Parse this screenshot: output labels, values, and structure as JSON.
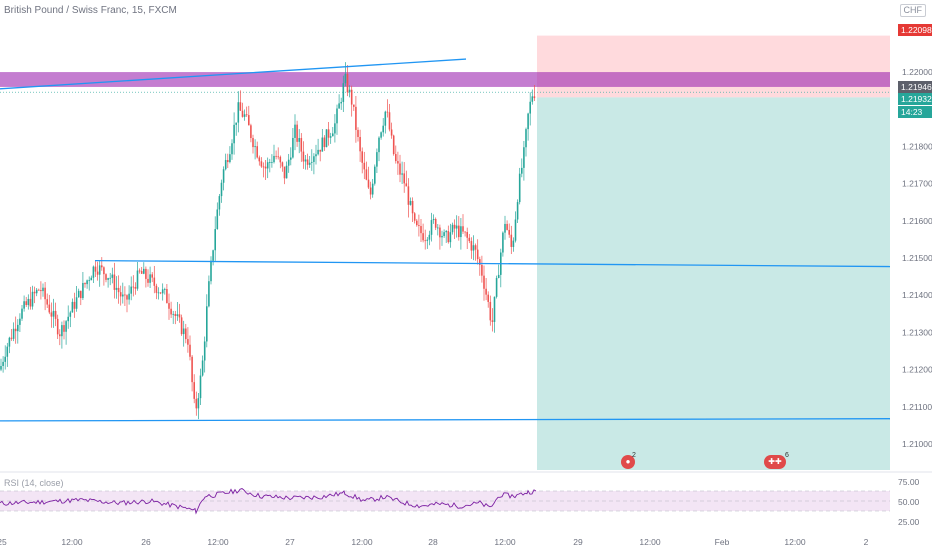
{
  "header": {
    "title": "British Pound / Swiss Franc, 15, FXCM",
    "currency": "CHF"
  },
  "rsi_panel": {
    "label": "RSI (14, close)",
    "ticks": [
      "75.00",
      "50.00",
      "25.00"
    ]
  },
  "price_tags": {
    "target": {
      "label": "1.22098",
      "color": "#e53935"
    },
    "last": {
      "label": "1.21946",
      "color": "#5d606b"
    },
    "entry": {
      "label": "1.21932",
      "color": "#26a69a"
    },
    "countdown": {
      "label": "14:23",
      "color": "#26a69a"
    }
  },
  "events": [
    {
      "icon": "calendar-event-icon",
      "count": "2"
    },
    {
      "icon": "dividend-event-icon",
      "count": "6"
    }
  ],
  "colors": {
    "up": "#26a69a",
    "down": "#ef5350",
    "trendline": "#2196f3",
    "resistance_band": "#9c27b0",
    "profit_zone": "#b2dfdb",
    "loss_zone": "#ffcdd2",
    "rsi_line": "#7b1fa2",
    "rsi_band": "#f3e5f5"
  },
  "chart_data": {
    "type": "candlestick",
    "title": "British Pound / Swiss Franc, 15, FXCM",
    "y_axis": {
      "range": [
        1.2093,
        1.2214
      ],
      "ticks": [
        "1.22000",
        "1.21900",
        "1.21800",
        "1.21700",
        "1.21600",
        "1.21500",
        "1.21400",
        "1.21300",
        "1.21200",
        "1.21100",
        "1.21000"
      ]
    },
    "x_axis": {
      "ticks": [
        "25",
        "12:00",
        "26",
        "12:00",
        "27",
        "12:00",
        "28",
        "12:00",
        "29",
        "12:00",
        "Feb",
        "12:00",
        "2"
      ]
    },
    "price_path": [
      [
        0,
        1.212
      ],
      [
        5,
        1.2125
      ],
      [
        20,
        1.2135
      ],
      [
        40,
        1.2142
      ],
      [
        60,
        1.213
      ],
      [
        75,
        1.2138
      ],
      [
        95,
        1.2148
      ],
      [
        110,
        1.2145
      ],
      [
        125,
        1.2138
      ],
      [
        140,
        1.2146
      ],
      [
        150,
        1.2144
      ],
      [
        165,
        1.214
      ],
      [
        178,
        1.2133
      ],
      [
        188,
        1.2128
      ],
      [
        195,
        1.2108
      ],
      [
        202,
        1.212
      ],
      [
        208,
        1.214
      ],
      [
        215,
        1.2158
      ],
      [
        222,
        1.2172
      ],
      [
        230,
        1.218
      ],
      [
        238,
        1.219
      ],
      [
        245,
        1.2188
      ],
      [
        255,
        1.218
      ],
      [
        265,
        1.2174
      ],
      [
        275,
        1.2178
      ],
      [
        285,
        1.2172
      ],
      [
        295,
        1.2184
      ],
      [
        305,
        1.2176
      ],
      [
        320,
        1.218
      ],
      [
        335,
        1.2186
      ],
      [
        345,
        1.2198
      ],
      [
        352,
        1.2192
      ],
      [
        360,
        1.2178
      ],
      [
        370,
        1.2166
      ],
      [
        378,
        1.2182
      ],
      [
        386,
        1.219
      ],
      [
        395,
        1.2176
      ],
      [
        405,
        1.217
      ],
      [
        415,
        1.2158
      ],
      [
        425,
        1.2156
      ],
      [
        435,
        1.216
      ],
      [
        445,
        1.2155
      ],
      [
        455,
        1.2158
      ],
      [
        465,
        1.2156
      ],
      [
        475,
        1.2152
      ],
      [
        482,
        1.2146
      ],
      [
        488,
        1.2138
      ],
      [
        492,
        1.2132
      ],
      [
        498,
        1.2146
      ],
      [
        505,
        1.216
      ],
      [
        512,
        1.2152
      ],
      [
        518,
        1.2168
      ],
      [
        524,
        1.2178
      ],
      [
        528,
        1.2188
      ],
      [
        532,
        1.2194
      ],
      [
        536,
        1.2195
      ]
    ],
    "series": [
      {
        "name": "RSI (14, close)",
        "range": [
          0,
          100
        ],
        "values": [
          [
            0,
            45
          ],
          [
            40,
            48
          ],
          [
            80,
            52
          ],
          [
            120,
            46
          ],
          [
            150,
            50
          ],
          [
            185,
            36
          ],
          [
            196,
            30
          ],
          [
            205,
            60
          ],
          [
            215,
            62
          ],
          [
            225,
            66
          ],
          [
            240,
            72
          ],
          [
            260,
            60
          ],
          [
            290,
            56
          ],
          [
            320,
            58
          ],
          [
            345,
            66
          ],
          [
            365,
            50
          ],
          [
            385,
            58
          ],
          [
            405,
            46
          ],
          [
            420,
            40
          ],
          [
            440,
            44
          ],
          [
            460,
            40
          ],
          [
            480,
            46
          ],
          [
            490,
            36
          ],
          [
            500,
            62
          ],
          [
            515,
            60
          ],
          [
            528,
            68
          ],
          [
            536,
            70
          ]
        ]
      }
    ],
    "annotations": {
      "resistance_band": [
        1.2196,
        1.22
      ],
      "upper_trendline": {
        "from": [
          0,
          1.21955
        ],
        "to": [
          466,
          1.22035
        ]
      },
      "mid_horizontal": {
        "from": [
          95,
          1.21493
        ],
        "to": [
          890,
          1.21477
        ]
      },
      "lower_horizontal": {
        "from": [
          0,
          1.21062
        ],
        "to": [
          890,
          1.21068
        ]
      },
      "position": {
        "target": 1.22098,
        "entry": 1.21932,
        "stop": 1.20937
      }
    }
  }
}
